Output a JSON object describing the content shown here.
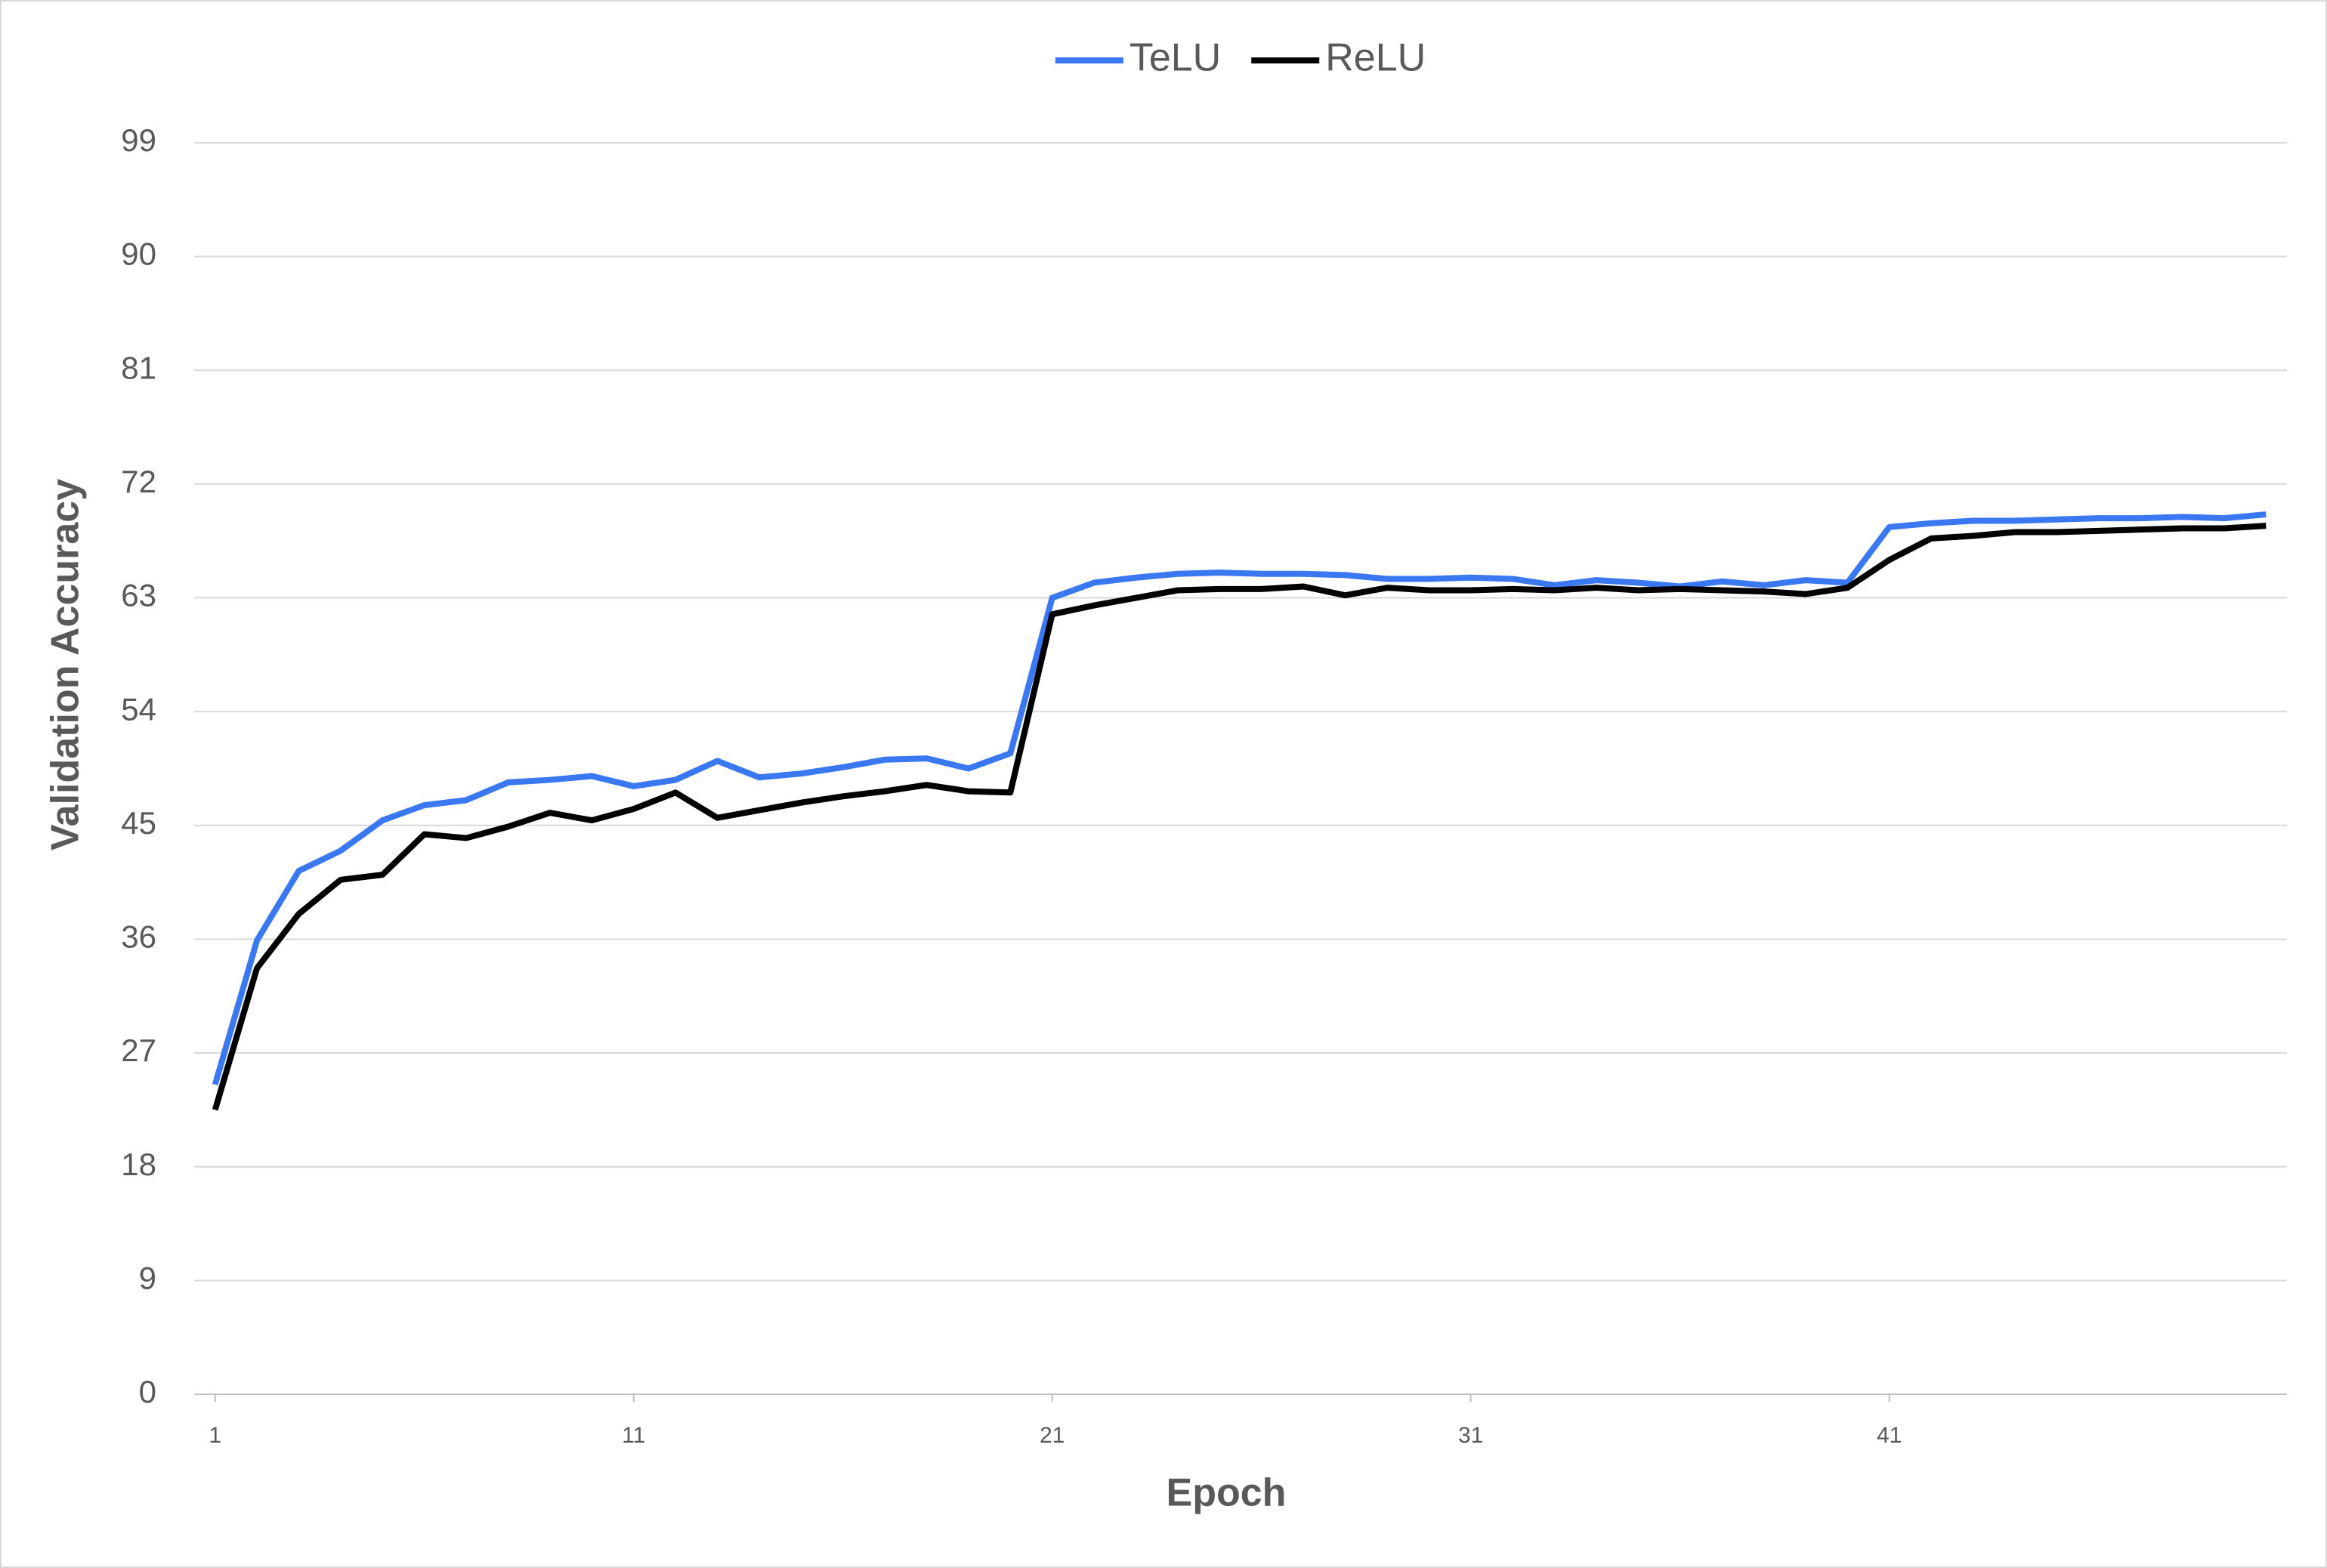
{
  "chart_data": {
    "type": "line",
    "x_label": "Epoch",
    "y_label": "Validation Accuracy",
    "x": [
      1,
      2,
      3,
      4,
      5,
      6,
      7,
      8,
      9,
      10,
      11,
      12,
      13,
      14,
      15,
      16,
      17,
      18,
      19,
      20,
      21,
      22,
      23,
      24,
      25,
      26,
      27,
      28,
      29,
      30,
      31,
      32,
      33,
      34,
      35,
      36,
      37,
      38,
      39,
      40,
      41,
      42,
      43,
      44,
      45,
      46,
      47,
      48,
      49,
      50
    ],
    "xlim": [
      0.5,
      50.5
    ],
    "xticks": [
      1,
      11,
      21,
      31,
      41
    ],
    "ylim": [
      0,
      99
    ],
    "yticks": [
      0,
      9,
      18,
      27,
      36,
      45,
      54,
      63,
      72,
      81,
      90,
      99
    ],
    "grid": true,
    "legend_position": "top",
    "series": [
      {
        "name": "TeLU",
        "color": "#3a78f2",
        "values": [
          24.5,
          35.9,
          41.4,
          43.0,
          45.4,
          46.6,
          47.0,
          48.4,
          48.6,
          48.9,
          48.1,
          48.6,
          50.1,
          48.8,
          49.1,
          49.6,
          50.2,
          50.3,
          49.5,
          50.7,
          63.0,
          64.2,
          64.6,
          64.9,
          65.0,
          64.9,
          64.9,
          64.8,
          64.5,
          64.5,
          64.6,
          64.5,
          64.0,
          64.4,
          64.2,
          63.9,
          64.3,
          64.0,
          64.4,
          64.2,
          68.6,
          68.9,
          69.1,
          69.1,
          69.2,
          69.3,
          69.3,
          69.4,
          69.3,
          69.6
        ]
      },
      {
        "name": "ReLU",
        "color": "#000000",
        "values": [
          22.5,
          33.7,
          38.0,
          40.7,
          41.1,
          44.3,
          44.0,
          44.9,
          46.0,
          45.4,
          46.3,
          47.6,
          45.6,
          46.2,
          46.8,
          47.3,
          47.7,
          48.2,
          47.7,
          47.6,
          61.7,
          62.4,
          63.0,
          63.6,
          63.7,
          63.7,
          63.9,
          63.2,
          63.8,
          63.6,
          63.6,
          63.7,
          63.6,
          63.8,
          63.6,
          63.7,
          63.6,
          63.5,
          63.3,
          63.8,
          66.0,
          67.7,
          67.9,
          68.2,
          68.2,
          68.3,
          68.4,
          68.5,
          68.5,
          68.7
        ]
      }
    ]
  }
}
